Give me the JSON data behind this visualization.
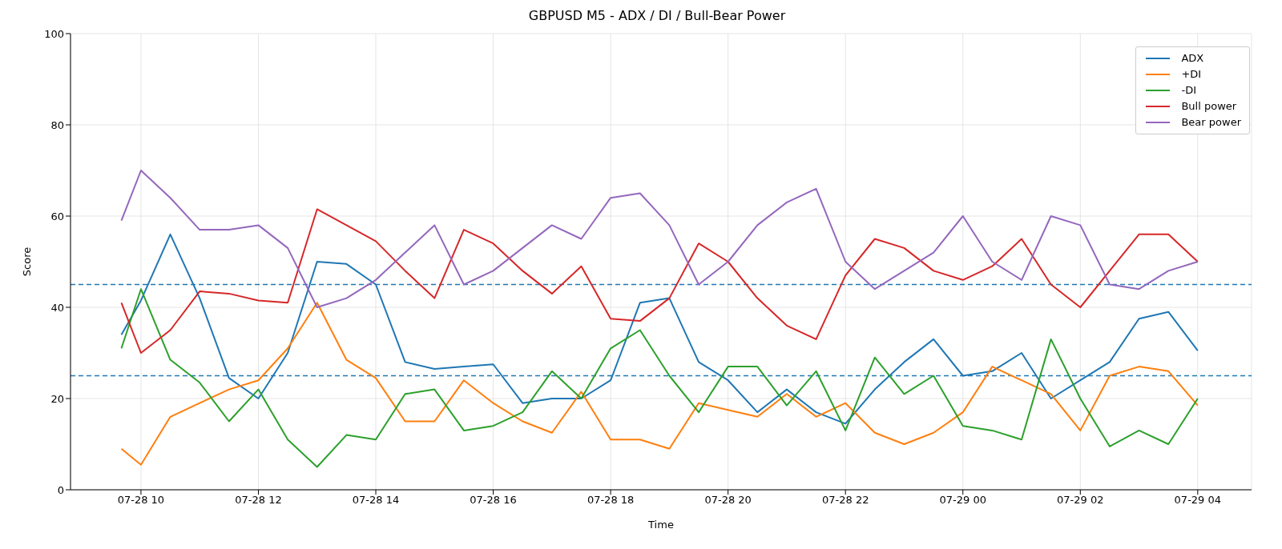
{
  "chart_data": {
    "type": "line",
    "title": "GBPUSD M5 - ADX / DI / Bull-Bear Power",
    "xlabel": "Time",
    "ylabel": "Score",
    "x": [
      "--07-28T09:40",
      "--07-28T10:00",
      "--07-28T10:30",
      "--07-28T11:00",
      "--07-28T11:30",
      "--07-28T12:00",
      "--07-28T12:30",
      "--07-28T13:00",
      "--07-28T13:30",
      "--07-28T14:00",
      "--07-28T14:30",
      "--07-28T15:00",
      "--07-28T15:30",
      "--07-28T16:00",
      "--07-28T16:30",
      "--07-28T17:00",
      "--07-28T17:30",
      "--07-28T18:00",
      "--07-28T18:30",
      "--07-28T19:00",
      "--07-28T19:30",
      "--07-28T20:00",
      "--07-28T20:30",
      "--07-28T21:00",
      "--07-28T21:30",
      "--07-28T22:00",
      "--07-28T22:30",
      "--07-28T23:00",
      "--07-28T23:30",
      "--07-29T00:00",
      "--07-29T00:30",
      "--07-29T01:00",
      "--07-29T01:30",
      "--07-29T02:00",
      "--07-29T02:30",
      "--07-29T03:00",
      "--07-29T03:30",
      "--07-29T04:00"
    ],
    "series": [
      {
        "name": "ADX",
        "color": "#1f77b4",
        "values": [
          34,
          41.5,
          56,
          42,
          24.5,
          20,
          30,
          50,
          49.5,
          45,
          28,
          26.5,
          27,
          27.5,
          19,
          20,
          20,
          24,
          41,
          42,
          28,
          24,
          17,
          22,
          17,
          14.5,
          22,
          28,
          33,
          25,
          26,
          30,
          20,
          24,
          28,
          37.5,
          39,
          30.5
        ]
      },
      {
        "name": "+DI",
        "color": "#ff7f0e",
        "values": [
          9,
          5.5,
          16,
          19,
          22,
          24,
          31,
          41,
          28.5,
          24.5,
          15,
          15,
          24,
          19,
          15,
          12.5,
          21.5,
          11,
          11,
          9,
          19,
          17.5,
          16,
          21,
          16,
          19,
          12.5,
          10,
          12.5,
          17,
          27,
          24,
          21,
          13,
          25,
          27,
          26,
          18.5
        ]
      },
      {
        "name": "-DI",
        "color": "#2ca02c",
        "values": [
          31,
          44,
          28.5,
          23.5,
          15,
          22,
          11,
          5,
          12,
          11,
          21,
          22,
          13,
          14,
          17,
          26,
          20,
          31,
          35,
          25,
          17,
          27,
          27,
          18.5,
          26,
          13,
          29,
          21,
          25,
          14,
          13,
          11,
          33,
          20,
          9.5,
          13,
          10,
          20
        ]
      },
      {
        "name": "Bull power",
        "color": "#d62728",
        "values": [
          41,
          30,
          35,
          43.5,
          43,
          41.5,
          41,
          61.5,
          58,
          54.5,
          48,
          42,
          57,
          54,
          48,
          43,
          49,
          37.5,
          37,
          42,
          54,
          50,
          42,
          36,
          33,
          47,
          55,
          53,
          48,
          46,
          49,
          55,
          45,
          40,
          48,
          56,
          56,
          50
        ]
      },
      {
        "name": "Bear power",
        "color": "#9467bd",
        "values": [
          59,
          70,
          64,
          57,
          57,
          58,
          53,
          40,
          42,
          46,
          52,
          58,
          45,
          48,
          53,
          58,
          55,
          64,
          65,
          58,
          45,
          50,
          58,
          63,
          66,
          50,
          44,
          48,
          52,
          60,
          50,
          46,
          60,
          58,
          45,
          44,
          48,
          50
        ]
      }
    ],
    "xlim": [
      "--07-28T08:48",
      "--07-29T04:55"
    ],
    "xticks": [
      {
        "value": "--07-28T10:00",
        "label": "07-28 10"
      },
      {
        "value": "--07-28T12:00",
        "label": "07-28 12"
      },
      {
        "value": "--07-28T14:00",
        "label": "07-28 14"
      },
      {
        "value": "--07-28T16:00",
        "label": "07-28 16"
      },
      {
        "value": "--07-28T18:00",
        "label": "07-28 18"
      },
      {
        "value": "--07-28T20:00",
        "label": "07-28 20"
      },
      {
        "value": "--07-28T22:00",
        "label": "07-28 22"
      },
      {
        "value": "--07-29T00:00",
        "label": "07-29 00"
      },
      {
        "value": "--07-29T02:00",
        "label": "07-29 02"
      },
      {
        "value": "--07-29T04:00",
        "label": "07-29 04"
      }
    ],
    "ylim": [
      0,
      100
    ],
    "yticks": [
      0,
      20,
      40,
      60,
      80,
      100
    ],
    "ref_lines": [
      {
        "axis": "y",
        "value": 45,
        "color": "#1f77b4",
        "line_style": "dashed"
      },
      {
        "axis": "y",
        "value": 25,
        "color": "#1f77b4",
        "line_style": "dashed"
      }
    ],
    "grid": true,
    "legend": "top right",
    "marker": "none",
    "line_style": "solid"
  }
}
